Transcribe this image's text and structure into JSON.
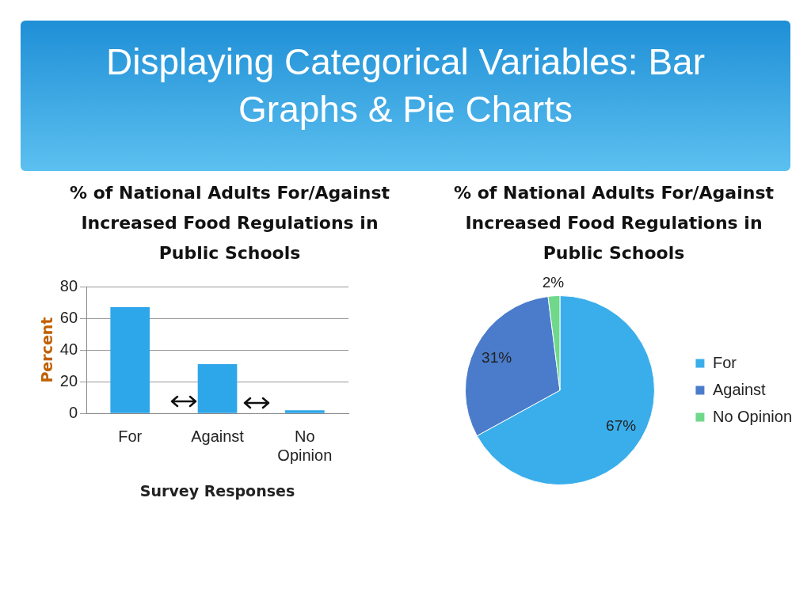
{
  "chart_data": [
    {
      "type": "other",
      "title": "Displaying Categorical Variables: Bar Graphs & Pie Charts"
    },
    {
      "type": "bar",
      "title": "% of National Adults For/Against Increased Food Regulations in Public Schools",
      "xlabel": "Survey Responses",
      "ylabel": "Percent",
      "categories": [
        "For",
        "Against",
        "No Opinion"
      ],
      "values": [
        67,
        31,
        2
      ],
      "color": "#2ea6ea",
      "ylim": [
        0,
        80
      ],
      "yticks": [
        0,
        20,
        40,
        60,
        80
      ],
      "grid": "y"
    },
    {
      "type": "pie",
      "title": "% of National Adults For/Against Increased Food Regulations in Public Schools",
      "categories": [
        "For",
        "Against",
        "No Opinion"
      ],
      "values": [
        67,
        31,
        2
      ],
      "colors": [
        "#3aaeea",
        "#4a7ccb",
        "#6fd88a"
      ],
      "value_labels": [
        "67%",
        "31%",
        "2%"
      ],
      "legend": "right"
    }
  ]
}
